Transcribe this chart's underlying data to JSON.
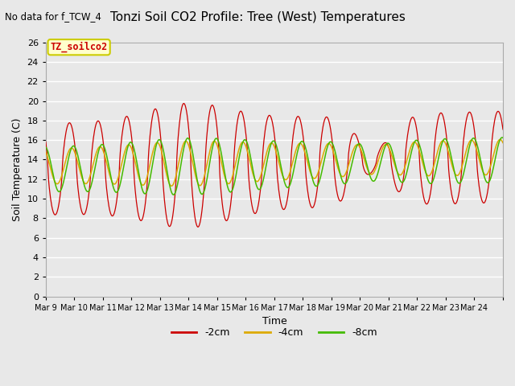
{
  "title": "Tonzi Soil CO2 Profile: Tree (West) Temperatures",
  "subtitle": "No data for f_TCW_4",
  "xlabel": "Time",
  "ylabel": "Soil Temperature (C)",
  "ylim": [
    0,
    26
  ],
  "yticks": [
    0,
    2,
    4,
    6,
    8,
    10,
    12,
    14,
    16,
    18,
    20,
    22,
    24,
    26
  ],
  "bg_color": "#e8e8e8",
  "legend_label": "TZ_soilco2",
  "legend_box_color": "#ffffcc",
  "legend_box_edge": "#cccc00",
  "series_labels": [
    "-2cm",
    "-4cm",
    "-8cm"
  ],
  "series_colors": [
    "#cc0000",
    "#ddaa00",
    "#44bb00"
  ],
  "x_tick_labels": [
    "Mar 9",
    "Mar 10",
    "Mar 11",
    "Mar 12",
    "Mar 13",
    "Mar 14",
    "Mar 15",
    "Mar 16",
    "Mar 17",
    "Mar 18",
    "Mar 19",
    "Mar 20",
    "Mar 21",
    "Mar 22",
    "Mar 23",
    "Mar 24"
  ],
  "n_days": 16,
  "pts_per_day": 48
}
